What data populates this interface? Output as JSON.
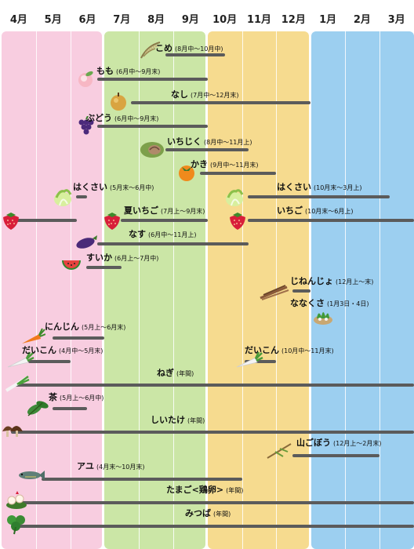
{
  "months": [
    "4月",
    "5月",
    "6月",
    "7月",
    "8月",
    "9月",
    "10月",
    "11月",
    "12月",
    "1月",
    "2月",
    "3月"
  ],
  "season_colors": {
    "spring": "#f8cde0",
    "summer": "#cbe6a6",
    "autumn": "#f6db8f",
    "winter": "#9ccff0",
    "bar": "#5b5b5b"
  },
  "chart_data": {
    "type": "gantt",
    "title": "",
    "xlabel": "",
    "ylabel": "",
    "axis_months": [
      "4月",
      "5月",
      "6月",
      "7月",
      "8月",
      "9月",
      "10月",
      "11月",
      "12月",
      "1月",
      "2月",
      "3月"
    ],
    "items": [
      {
        "name": "こめ",
        "period": "(8月中〜10月中)",
        "icon": "rice-icon",
        "start": 4.5,
        "end": 6.5
      },
      {
        "name": "もも",
        "period": "(6月中〜9月末)",
        "icon": "peach-icon",
        "start": 2.5,
        "end": 6.0
      },
      {
        "name": "なし",
        "period": "(7月中〜12月末)",
        "icon": "pear-icon",
        "start": 3.5,
        "end": 9.0
      },
      {
        "name": "ぶどう",
        "period": "(6月中〜9月末)",
        "icon": "grape-icon",
        "start": 2.5,
        "end": 6.0
      },
      {
        "name": "いちじく",
        "period": "(8月中〜11月上)",
        "icon": "fig-icon",
        "start": 4.5,
        "end": 7.2
      },
      {
        "name": "かき",
        "period": "(9月中〜11月末)",
        "icon": "persimmon-icon",
        "start": 5.5,
        "end": 8.0
      },
      {
        "name": "はくさい",
        "period": "(5月末〜6月中)",
        "icon": "napa-cabbage-icon",
        "start": 1.9,
        "end": 2.5
      },
      {
        "name": "はくさい",
        "period": "(10月末〜3月上)",
        "icon": "napa-cabbage-icon",
        "start": 6.9,
        "end": 11.3
      },
      {
        "name": "夏いちご",
        "period": "(7月上〜9月末)",
        "icon": "strawberry-icon",
        "start": 3.2,
        "end": 6.0
      },
      {
        "name": "いちご",
        "period": "(10月末〜6月上)",
        "icon": "strawberry-icon",
        "start": 6.9,
        "end": 12.0
      },
      {
        "name": "",
        "period": "",
        "icon": "strawberry-icon",
        "start": 0.0,
        "end": 2.2
      },
      {
        "name": "なす",
        "period": "(6月中〜11月上)",
        "icon": "eggplant-icon",
        "start": 2.5,
        "end": 7.2
      },
      {
        "name": "すいか",
        "period": "(6月上〜7月中)",
        "icon": "watermelon-icon",
        "start": 2.2,
        "end": 3.5
      },
      {
        "name": "じねんじょ",
        "period": "(12月上〜末)",
        "icon": "wild-yam-icon",
        "start": 8.2,
        "end": 9.0
      },
      {
        "name": "ななくさ",
        "period": "(1月3日・4日)",
        "icon": "nanakusa-icon",
        "start": 9.1,
        "end": 9.13
      },
      {
        "name": "にんじん",
        "period": "(5月上〜6月末)",
        "icon": "carrot-icon",
        "start": 1.2,
        "end": 3.0
      },
      {
        "name": "だいこん",
        "period": "(4月中〜5月末)",
        "icon": "daikon-icon",
        "start": 0.5,
        "end": 2.0
      },
      {
        "name": "だいこん",
        "period": "(10月中〜11月末)",
        "icon": "daikon-icon",
        "start": 6.5,
        "end": 8.0
      },
      {
        "name": "ねぎ",
        "period": "(年間)",
        "icon": "green-onion-icon",
        "start": 0.0,
        "end": 12.0
      },
      {
        "name": "茶",
        "period": "(5月上〜6月中)",
        "icon": "tea-leaf-icon",
        "start": 1.2,
        "end": 2.5
      },
      {
        "name": "しいたけ",
        "period": "(年間)",
        "icon": "shiitake-icon",
        "start": 0.0,
        "end": 12.0
      },
      {
        "name": "山ごぼう",
        "period": "(12月上〜2月末)",
        "icon": "burdock-icon",
        "start": 8.2,
        "end": 11.0
      },
      {
        "name": "アユ",
        "period": "(4月末〜10月末)",
        "icon": "sweetfish-icon",
        "start": 0.9,
        "end": 7.0
      },
      {
        "name": "たまご<鶏卵>",
        "period": "(年間)",
        "icon": "egg-icon",
        "start": 0.0,
        "end": 12.0
      },
      {
        "name": "みつば",
        "period": "(年間)",
        "icon": "mitsuba-icon",
        "start": 0.0,
        "end": 12.0
      }
    ]
  }
}
